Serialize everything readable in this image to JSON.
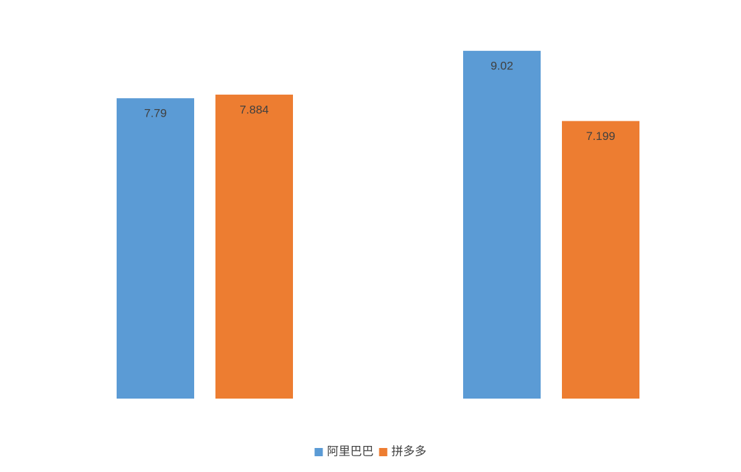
{
  "chart_data": {
    "type": "bar",
    "categories": [
      null,
      null
    ],
    "series": [
      {
        "name": "阿里巴巴",
        "color": "#5b9bd5",
        "values": [
          7.79,
          9.02
        ]
      },
      {
        "name": "拼多多",
        "color": "#ed7d31",
        "values": [
          7.884,
          7.199
        ]
      }
    ],
    "ylim": [
      0,
      10
    ],
    "legend": "bottom"
  }
}
